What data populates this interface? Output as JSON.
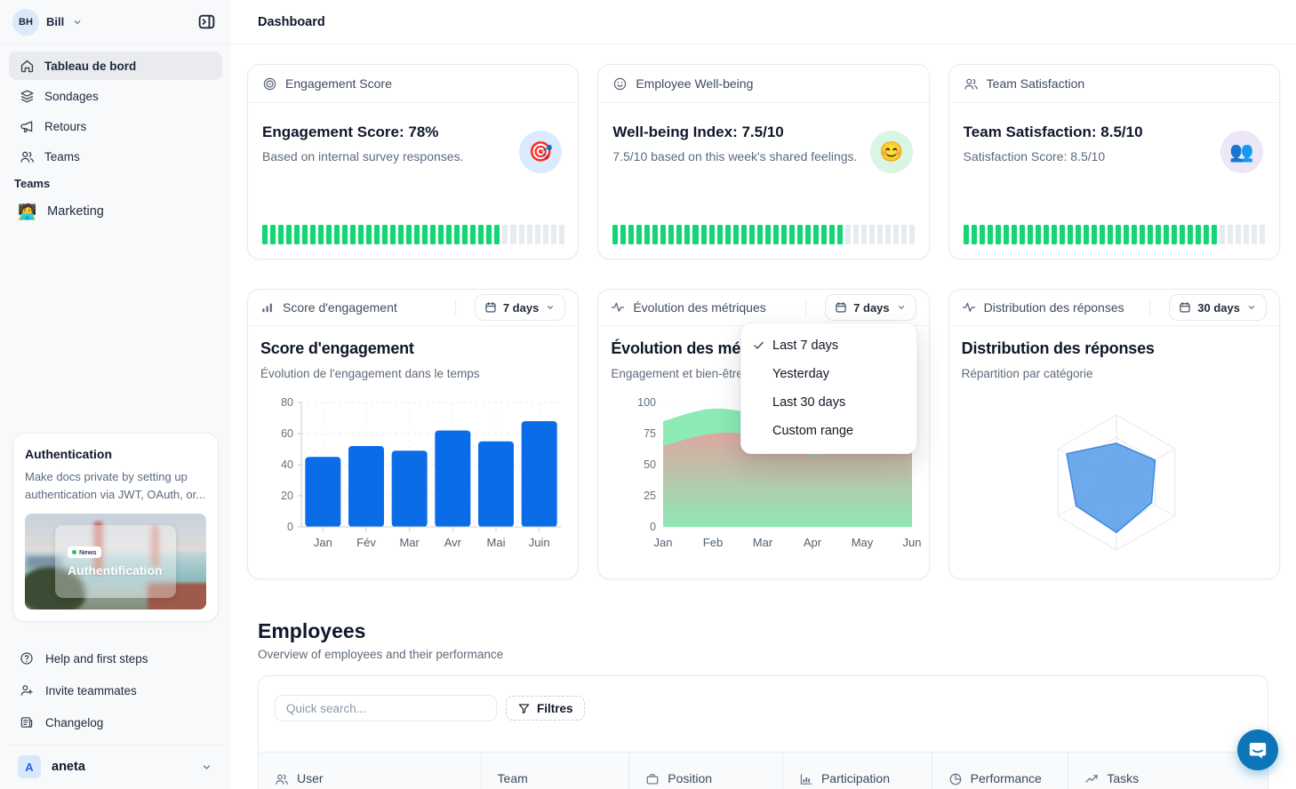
{
  "colors": {
    "accent_blue": "#0b6ce8",
    "progress_green": "#12d674",
    "progress_track": "#e7eaee",
    "area_green": "#8ceab5",
    "area_red": "#e79f9f",
    "radar_blue": "#549be7",
    "chat_blue": "#0d75b8"
  },
  "sidebar": {
    "workspace": {
      "initials": "BH",
      "name": "Bill"
    },
    "nav": [
      {
        "label": "Tableau de bord",
        "icon": "home",
        "active": true
      },
      {
        "label": "Sondages",
        "icon": "layers",
        "active": false
      },
      {
        "label": "Retours",
        "icon": "megaphone",
        "active": false
      },
      {
        "label": "Teams",
        "icon": "users",
        "active": false
      }
    ],
    "teams_section": {
      "label": "Teams",
      "items": [
        {
          "emoji": "🧑‍💻",
          "label": "Marketing"
        }
      ]
    },
    "promo_card": {
      "title": "Authentication",
      "body": "Make docs private by setting up authentication via JWT, OAuth, or...",
      "badge": "News",
      "image_title": "Authentification"
    },
    "footer_nav": [
      {
        "label": "Help and first steps",
        "icon": "help-circle"
      },
      {
        "label": "Invite teammates",
        "icon": "user-plus"
      },
      {
        "label": "Changelog",
        "icon": "changelog"
      }
    ],
    "account": {
      "initial": "A",
      "name": "aneta"
    }
  },
  "header": {
    "title": "Dashboard"
  },
  "stat_cards": [
    {
      "header": "Engagement Score",
      "icon": "target",
      "headline": "Engagement Score: 78%",
      "subtext": "Based on internal survey responses.",
      "emoji": "🎯",
      "emoji_bg": "#dbeafd",
      "progress_percent": 78
    },
    {
      "header": "Employee Well-being",
      "icon": "smile",
      "headline": "Well-being Index: 7.5/10",
      "subtext": "7.5/10 based on this week's shared feelings.",
      "emoji": "😊",
      "emoji_bg": "#d9f6e5",
      "progress_percent": 75
    },
    {
      "header": "Team Satisfaction",
      "icon": "users",
      "headline": "Team Satisfaction: 8.5/10",
      "subtext": "Satisfaction Score: 8.5/10",
      "emoji": "👥",
      "emoji_bg": "#ece6f7",
      "progress_percent": 85
    }
  ],
  "chart_cards": [
    {
      "header": "Score d'engagement",
      "icon": "bar-chart",
      "range_label": "7 days"
    },
    {
      "header": "Évolution des métriques",
      "icon": "activity",
      "range_label": "7 days"
    },
    {
      "header": "Distribution des réponses",
      "icon": "activity",
      "range_label": "30 days"
    }
  ],
  "range_menu": {
    "items": [
      {
        "label": "Last 7 days",
        "checked": true
      },
      {
        "label": "Yesterday",
        "checked": false
      },
      {
        "label": "Last 30 days",
        "checked": false
      },
      {
        "label": "Custom range",
        "checked": false
      }
    ]
  },
  "chart_data": [
    {
      "type": "bar",
      "title": "Score d'engagement",
      "subtitle": "Évolution de l'engagement dans le temps",
      "categories": [
        "Jan",
        "Fév",
        "Mar",
        "Avr",
        "Mai",
        "Juin"
      ],
      "values": [
        45,
        52,
        49,
        62,
        55,
        68
      ],
      "ylim": [
        0,
        80
      ],
      "yticks": [
        0,
        20,
        40,
        60,
        80
      ],
      "bar_color": "#0b6ce8",
      "grid": "dashed"
    },
    {
      "type": "area",
      "title": "Évolution des métriques",
      "subtitle": "Engagement et bien-être au fil du temps",
      "x": [
        "Jan",
        "Feb",
        "Mar",
        "Apr",
        "May",
        "Jun"
      ],
      "series": [
        {
          "color": "#8ceab5",
          "values": [
            85,
            95,
            88,
            67,
            85,
            90
          ]
        },
        {
          "color": "#e79f9f",
          "values": [
            65,
            75,
            73,
            58,
            70,
            76
          ]
        }
      ],
      "ylim": [
        0,
        100
      ],
      "yticks": [
        0,
        25,
        50,
        75,
        100
      ]
    },
    {
      "type": "radar",
      "title": "Distribution des réponses",
      "subtitle": "Répartition par catégorie",
      "axes": 6,
      "rings": 3,
      "values_percent": [
        58,
        66,
        60,
        74,
        69,
        85
      ],
      "fill_color": "#549be7"
    }
  ],
  "employees": {
    "title": "Employees",
    "subtitle": "Overview of employees and their performance",
    "search_placeholder": "Quick search...",
    "filter_label": "Filtres",
    "columns": [
      {
        "label": "User",
        "icon": "users"
      },
      {
        "label": "Team",
        "icon": ""
      },
      {
        "label": "Position",
        "icon": "briefcase"
      },
      {
        "label": "Participation",
        "icon": "bar-chart"
      },
      {
        "label": "Performance",
        "icon": "pie-chart"
      },
      {
        "label": "Tasks",
        "icon": "trending-up"
      }
    ]
  }
}
